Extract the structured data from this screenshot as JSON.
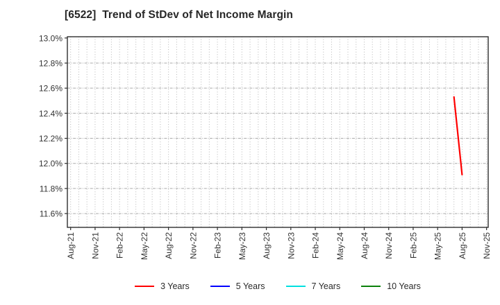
{
  "chart_data": {
    "type": "line",
    "title": "[6522]  Trend of StDev of Net Income Margin",
    "xlabel": "",
    "ylabel": "",
    "y_ticks": [
      13.0,
      12.8,
      12.6,
      12.4,
      12.2,
      12.0,
      11.8,
      11.6
    ],
    "y_tick_labels": [
      "13.0%",
      "12.8%",
      "12.6%",
      "12.4%",
      "12.2%",
      "12.0%",
      "11.8%",
      "11.6%"
    ],
    "ylim": [
      11.49,
      13.01
    ],
    "x_tick_labels": [
      "Aug-21",
      "Nov-21",
      "Feb-22",
      "May-22",
      "Aug-22",
      "Nov-22",
      "Feb-23",
      "May-23",
      "Aug-23",
      "Nov-23",
      "Feb-24",
      "May-24",
      "Aug-24",
      "Nov-24",
      "Feb-25",
      "May-25",
      "Aug-25",
      "Nov-25"
    ],
    "x_start_month": "2021-08",
    "x_months_total": 52,
    "xlim_months": [
      -0.4,
      51.2
    ],
    "grid": {
      "on": true,
      "vertical": "monthly dotted",
      "horizontal": "dash-dot per 0.2%",
      "color": "#b6b6b6"
    },
    "legend_position": "bottom-center",
    "axis_color": "#2e2e2e",
    "series": [
      {
        "name": "3 Years",
        "color": "#ff0000",
        "points": [
          {
            "x": "2025-07",
            "y": 12.53
          },
          {
            "x": "2025-08",
            "y": 11.91
          }
        ]
      },
      {
        "name": "5 Years",
        "color": "#0000ff",
        "points": []
      },
      {
        "name": "7 Years",
        "color": "#00e0e0",
        "points": []
      },
      {
        "name": "10 Years",
        "color": "#0a800a",
        "points": []
      }
    ]
  }
}
